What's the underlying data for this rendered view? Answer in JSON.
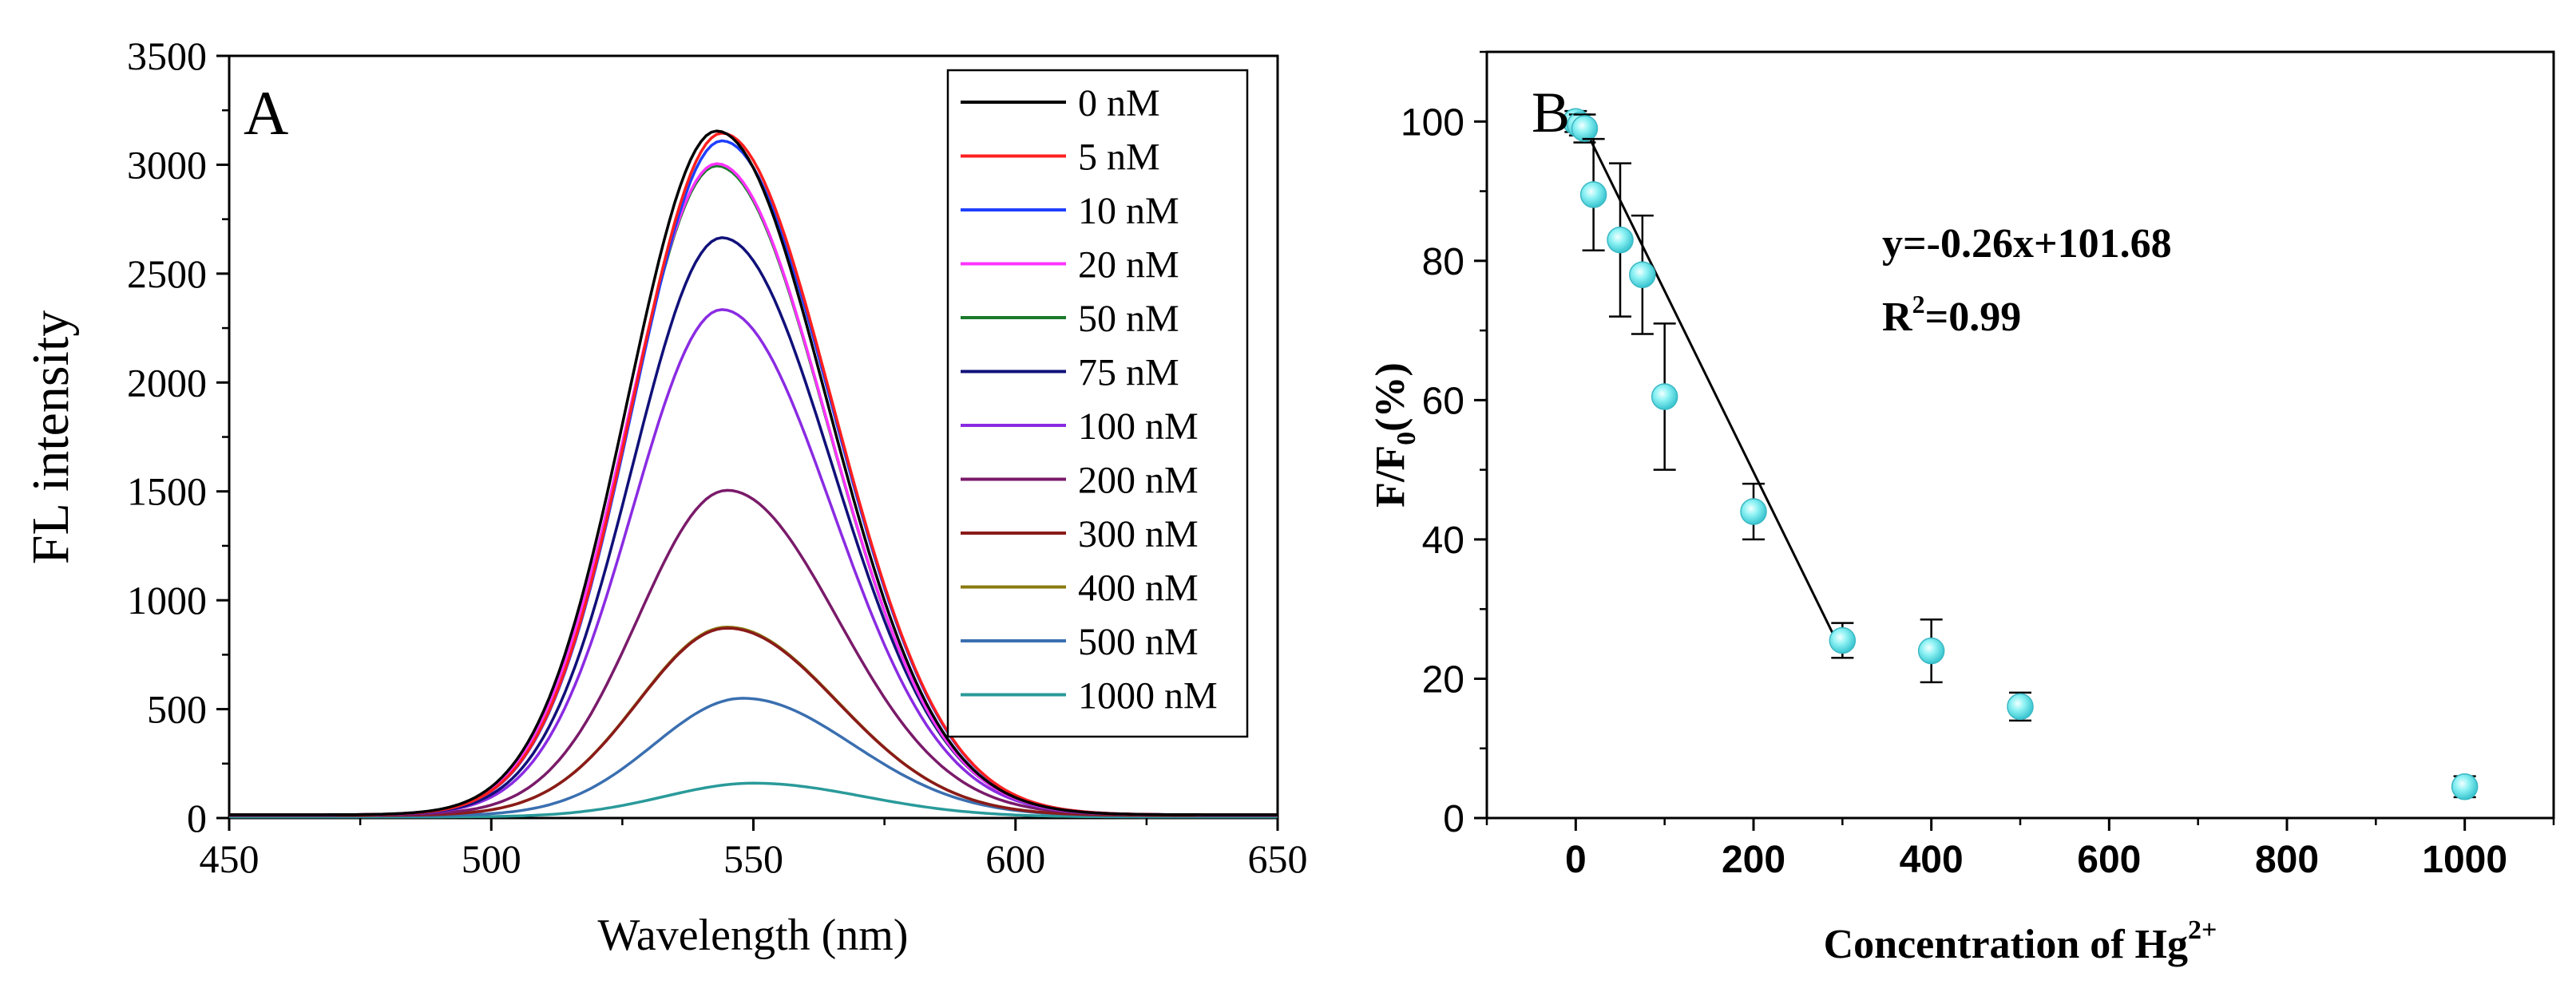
{
  "chart_data": [
    {
      "panel": "A",
      "type": "line",
      "xlabel": "Wavelength (nm)",
      "ylabel": "FL intensity",
      "xlim": [
        450,
        650
      ],
      "ylim": [
        0,
        3500
      ],
      "xticks": [
        450,
        500,
        550,
        600,
        650
      ],
      "yticks": [
        0,
        500,
        1000,
        1500,
        2000,
        2500,
        3000,
        3500
      ],
      "legend_position": "top-right",
      "series": [
        {
          "name": "0 nM",
          "peak_wavelength": 543,
          "peak": 3140,
          "baseline": 15,
          "color": "#000000"
        },
        {
          "name": "5 nM",
          "peak_wavelength": 544,
          "peak": 3130,
          "baseline": 15,
          "color": "#ff1f1f"
        },
        {
          "name": "10 nM",
          "peak_wavelength": 544,
          "peak": 3095,
          "baseline": 15,
          "color": "#1f3fff"
        },
        {
          "name": "20 nM",
          "peak_wavelength": 543,
          "peak": 2990,
          "baseline": 15,
          "color": "#ff33ff"
        },
        {
          "name": "50 nM",
          "peak_wavelength": 543,
          "peak": 2980,
          "baseline": 15,
          "color": "#1a7a2a"
        },
        {
          "name": "75 nM",
          "peak_wavelength": 544,
          "peak": 2650,
          "baseline": 15,
          "color": "#10107a"
        },
        {
          "name": "100 nM",
          "peak_wavelength": 544,
          "peak": 2320,
          "baseline": 15,
          "color": "#8a2be2"
        },
        {
          "name": "200 nM",
          "peak_wavelength": 545,
          "peak": 1490,
          "baseline": 15,
          "color": "#7a1a6a"
        },
        {
          "name": "300 nM",
          "peak_wavelength": 545,
          "peak": 860,
          "baseline": 12,
          "color": "#8b1a1a"
        },
        {
          "name": "400 nM",
          "peak_wavelength": 545,
          "peak": 865,
          "baseline": 12,
          "color": "#8a7a10"
        },
        {
          "name": "500 nM",
          "peak_wavelength": 548,
          "peak": 540,
          "baseline": 10,
          "color": "#3a6fb0"
        },
        {
          "name": "1000 nM",
          "peak_wavelength": 550,
          "peak": 155,
          "baseline": 5,
          "color": "#2a9a9a"
        }
      ]
    },
    {
      "panel": "B",
      "type": "scatter",
      "xlabel": "Concentration of Hg",
      "xlabel_sup": "2+",
      "ylabel_main": "F/F",
      "ylabel_sub": "0",
      "ylabel_tail": "(%)",
      "xlim": [
        -100,
        1100
      ],
      "ylim": [
        0,
        110
      ],
      "xticks": [
        0,
        200,
        400,
        600,
        800,
        1000
      ],
      "yticks": [
        0,
        20,
        40,
        60,
        80,
        100
      ],
      "points": [
        {
          "x": 0,
          "y": 100,
          "err": 1.5
        },
        {
          "x": 5,
          "y": 99.5,
          "err": 1.5
        },
        {
          "x": 10,
          "y": 99,
          "err": 2
        },
        {
          "x": 20,
          "y": 89.5,
          "err": 8
        },
        {
          "x": 50,
          "y": 83,
          "err": 11
        },
        {
          "x": 75,
          "y": 78,
          "err": 8.5
        },
        {
          "x": 100,
          "y": 60.5,
          "err": 10.5
        },
        {
          "x": 200,
          "y": 44,
          "err": 4
        },
        {
          "x": 300,
          "y": 25.5,
          "err": 2.5
        },
        {
          "x": 400,
          "y": 24,
          "err": 4.5
        },
        {
          "x": 500,
          "y": 16,
          "err": 2
        },
        {
          "x": 1000,
          "y": 4.5,
          "err": 1.5
        }
      ],
      "fit": {
        "slope": -0.26,
        "intercept": 101.68,
        "x_range": [
          0,
          300
        ]
      },
      "equation": "y=-0.26x+101.68",
      "r2_prefix": "R",
      "r2_sup": "2",
      "r2_suffix": "=0.99"
    }
  ],
  "labels": {
    "panel_a": "A",
    "panel_b": "B"
  }
}
